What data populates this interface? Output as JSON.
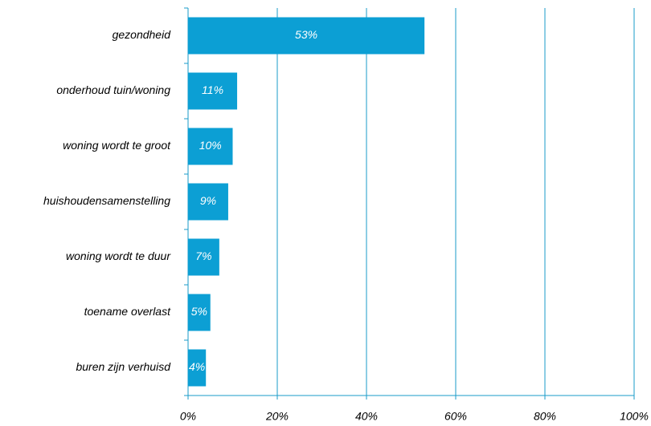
{
  "chart_data": {
    "type": "bar",
    "orientation": "horizontal",
    "categories": [
      "gezondheid",
      "onderhoud tuin/woning",
      "woning wordt te groot",
      "huishoudensamenstelling",
      "woning wordt te duur",
      "toename overlast",
      "buren zijn verhuisd"
    ],
    "values": [
      53,
      11,
      10,
      9,
      7,
      5,
      4
    ],
    "value_labels": [
      "53%",
      "11%",
      "10%",
      "9%",
      "7%",
      "5%",
      "4%"
    ],
    "color": "#0c9fd4",
    "xlim": [
      0,
      100
    ],
    "xticks": [
      {
        "value": 0,
        "label": "0%"
      },
      {
        "value": 20,
        "label": "20%"
      },
      {
        "value": 40,
        "label": "40%"
      },
      {
        "value": 60,
        "label": "60%"
      },
      {
        "value": 80,
        "label": "80%"
      },
      {
        "value": 100,
        "label": "100%"
      }
    ],
    "grid": true
  }
}
